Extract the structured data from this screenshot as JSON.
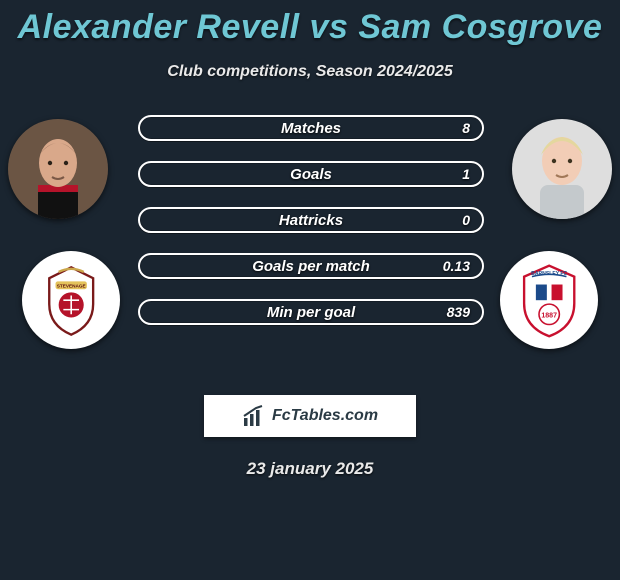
{
  "title": "Alexander Revell vs Sam Cosgrove",
  "subtitle": "Club competitions, Season 2024/2025",
  "date": "23 january 2025",
  "site_logo_text": "FcTables.com",
  "players": {
    "left": {
      "name": "Alexander Revell",
      "skin": "#d9a88a",
      "hair": "#3a2a1e",
      "shirt": "#111111",
      "trim": "#b5132a",
      "bg": "#6b5544"
    },
    "right": {
      "name": "Sam Cosgrove",
      "skin": "#f2cdb6",
      "hair": "#e4d79e",
      "shirt": "#c4c9cc",
      "trim": "#ffffff",
      "bg": "#dedede"
    }
  },
  "clubs": {
    "left": {
      "name": "Stevenage FC",
      "primary": "#b5132a",
      "secondary": "#e4c25b",
      "text": "STEVENAGE"
    },
    "right": {
      "name": "Barnsley FC",
      "primary": "#c8102e",
      "secondary": "#1b4a8a",
      "year": "1887",
      "text": "BARNSLEY FC"
    }
  },
  "stats": [
    {
      "label": "Matches",
      "right_value": "8"
    },
    {
      "label": "Goals",
      "right_value": "1"
    },
    {
      "label": "Hattricks",
      "right_value": "0"
    },
    {
      "label": "Goals per match",
      "right_value": "0.13"
    },
    {
      "label": "Min per goal",
      "right_value": "839"
    }
  ],
  "colors": {
    "background": "#1a2530",
    "title": "#6fc7d4",
    "bar_border": "#ffffff",
    "text": "#ffffff"
  }
}
